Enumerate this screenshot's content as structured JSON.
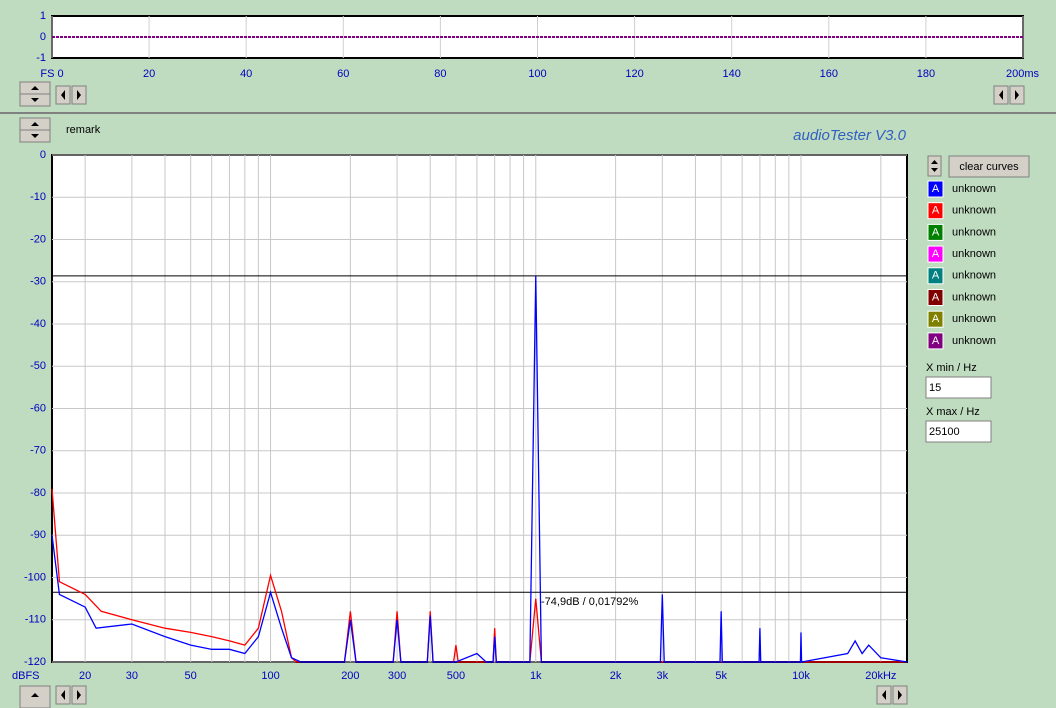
{
  "scope": {
    "xlim": [
      0,
      200
    ],
    "ylim": [
      -1,
      1
    ],
    "yticks": [
      1,
      0,
      -1
    ],
    "xticks": [
      {
        "value": 0,
        "label": "FS 0"
      },
      20,
      40,
      60,
      80,
      100,
      120,
      140,
      160,
      180,
      {
        "value": 200,
        "label": "200ms"
      }
    ],
    "trace": {
      "color": "#800080",
      "x": [
        0,
        200
      ],
      "values": [
        0,
        0
      ]
    }
  },
  "header": {
    "remark": "remark",
    "app_title": "audioTester  V3.0"
  },
  "spectrum": {
    "log_x": true,
    "xlim": [
      15,
      25100
    ],
    "ylim": [
      -120,
      0
    ],
    "yticks": [
      0,
      -10,
      -20,
      -30,
      -40,
      -50,
      -60,
      -70,
      -80,
      -90,
      -100,
      -110,
      -120
    ],
    "xticks": [
      20,
      30,
      50,
      100,
      200,
      300,
      500,
      {
        "value": 1000,
        "label": "1k"
      },
      {
        "value": 2000,
        "label": "2k"
      },
      {
        "value": 3000,
        "label": "3k"
      },
      {
        "value": 5000,
        "label": "5k"
      },
      {
        "value": 10000,
        "label": "10k"
      },
      {
        "value": 20000,
        "label": "20kHz"
      }
    ],
    "xgrid": [
      20,
      30,
      40,
      50,
      60,
      70,
      80,
      90,
      100,
      200,
      300,
      400,
      500,
      600,
      700,
      800,
      900,
      1000,
      2000,
      3000,
      4000,
      5000,
      6000,
      7000,
      8000,
      9000,
      10000,
      20000
    ],
    "y_unit": "dBFS",
    "markers": [
      -28.6,
      -103.5
    ],
    "annotation": "-74,9dB / 0,01792%",
    "series": [
      {
        "color": "#ff0000",
        "x": [
          15,
          16,
          20,
          23,
          30,
          40,
          50,
          60,
          70,
          80,
          90,
          100,
          110,
          120,
          125,
          190,
          200,
          210,
          290,
          300,
          310,
          390,
          400,
          410,
          490,
          500,
          510,
          690,
          700,
          710,
          950,
          1000,
          1050,
          25100
        ],
        "values": [
          -79,
          -101,
          -104,
          -108,
          -110,
          -112,
          -113,
          -114,
          -115,
          -116,
          -112,
          -99.5,
          -108,
          -119,
          -120,
          -120,
          -108,
          -120,
          -120,
          -108,
          -120,
          -120,
          -108,
          -120,
          -120,
          -116,
          -120,
          -120,
          -112,
          -120,
          -120,
          -105,
          -120,
          -120
        ]
      },
      {
        "color": "#0000ff",
        "x": [
          15,
          16,
          20,
          22,
          30,
          40,
          50,
          60,
          70,
          80,
          90,
          100,
          110,
          120,
          130,
          190,
          200,
          210,
          290,
          300,
          310,
          390,
          400,
          410,
          500,
          600,
          650,
          690,
          700,
          710,
          950,
          1000,
          1050,
          2950,
          3000,
          3050,
          4950,
          5000,
          5050,
          6950,
          7000,
          7050,
          9950,
          10000,
          10050,
          15000,
          16000,
          17000,
          18000,
          20000,
          25100
        ],
        "values": [
          -90,
          -104,
          -107,
          -112,
          -111,
          -114,
          -116,
          -117,
          -117,
          -118,
          -114,
          -103.5,
          -112,
          -119,
          -120,
          -120,
          -110,
          -120,
          -120,
          -110,
          -120,
          -120,
          -109,
          -120,
          -120,
          -118,
          -120,
          -120,
          -114,
          -120,
          -120,
          -28.6,
          -120,
          -120,
          -104,
          -120,
          -120,
          -108,
          -120,
          -120,
          -112,
          -120,
          -120,
          -113,
          -120,
          -118,
          -115,
          -118,
          -116,
          -119,
          -120
        ]
      }
    ]
  },
  "side_panel": {
    "clear_button": "clear curves",
    "legend": [
      {
        "tag": "A",
        "name": "unknown",
        "color": "#0000ff"
      },
      {
        "tag": "A",
        "name": "unknown",
        "color": "#ff0000"
      },
      {
        "tag": "A",
        "name": "unknown",
        "color": "#008000"
      },
      {
        "tag": "A",
        "name": "unknown",
        "color": "#ff00ff"
      },
      {
        "tag": "A",
        "name": "unknown",
        "color": "#008080"
      },
      {
        "tag": "A",
        "name": "unknown",
        "color": "#800000"
      },
      {
        "tag": "A",
        "name": "unknown",
        "color": "#808000"
      },
      {
        "tag": "A",
        "name": "unknown",
        "color": "#800080"
      }
    ],
    "xmin_label": "X min / Hz",
    "xmin_value": "15",
    "xmax_label": "X max / Hz",
    "xmax_value": "25100"
  }
}
